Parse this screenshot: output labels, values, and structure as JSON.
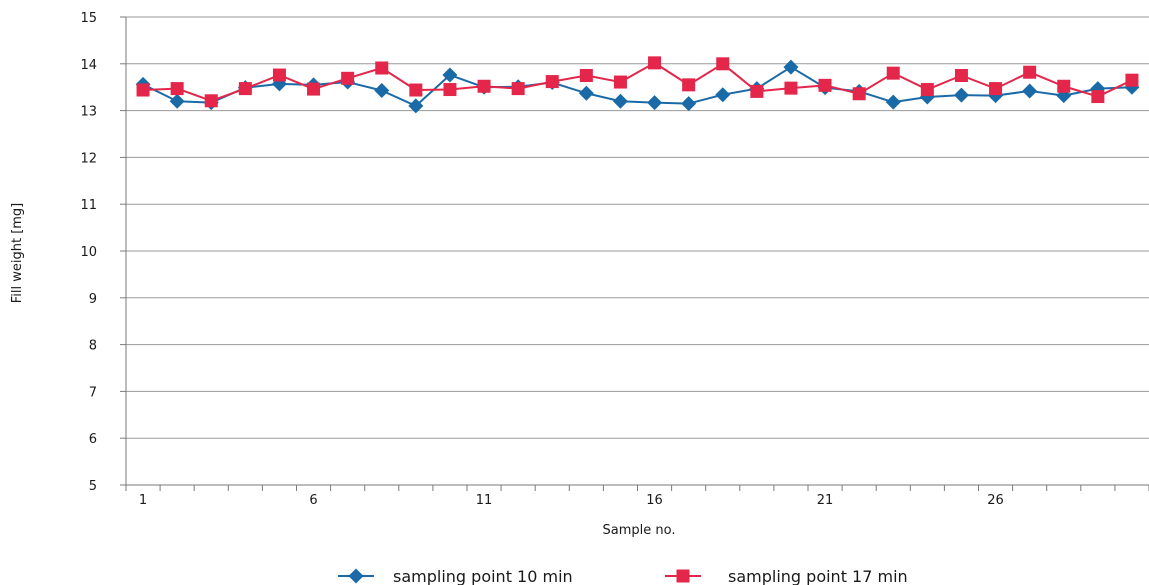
{
  "chart_data": {
    "type": "line",
    "title": "",
    "xlabel": "Sample no.",
    "ylabel": "Fill weight [mg]",
    "x": [
      1,
      2,
      3,
      4,
      5,
      6,
      7,
      8,
      9,
      10,
      11,
      12,
      13,
      14,
      15,
      16,
      17,
      18,
      19,
      20,
      21,
      22,
      23,
      24,
      25,
      26,
      27,
      28,
      29,
      30
    ],
    "x_ticks": [
      1,
      6,
      11,
      16,
      21,
      26
    ],
    "y_ticks": [
      5,
      6,
      7,
      8,
      9,
      10,
      11,
      12,
      13,
      14,
      15
    ],
    "xlim": [
      0.5,
      30.5
    ],
    "ylim": [
      5,
      15
    ],
    "grid": "horizontal",
    "legend_position": "bottom",
    "series": [
      {
        "name": "sampling point 10 min",
        "color": "#1b6aa8",
        "marker": "diamond",
        "values": [
          13.56,
          13.2,
          13.17,
          13.49,
          13.57,
          13.55,
          13.61,
          13.43,
          13.1,
          13.76,
          13.5,
          13.51,
          13.6,
          13.37,
          13.2,
          13.17,
          13.15,
          13.34,
          13.47,
          13.93,
          13.49,
          13.41,
          13.18,
          13.29,
          13.33,
          13.32,
          13.42,
          13.32,
          13.47,
          13.5
        ]
      },
      {
        "name": "sampling point 17 min",
        "color": "#e3264a",
        "marker": "square",
        "values": [
          13.44,
          13.47,
          13.21,
          13.47,
          13.76,
          13.46,
          13.69,
          13.91,
          13.44,
          13.45,
          13.52,
          13.47,
          13.62,
          13.75,
          13.61,
          14.02,
          13.55,
          14.0,
          13.41,
          13.48,
          13.54,
          13.36,
          13.8,
          13.45,
          13.75,
          13.47,
          13.82,
          13.52,
          13.3,
          13.65
        ]
      }
    ]
  }
}
